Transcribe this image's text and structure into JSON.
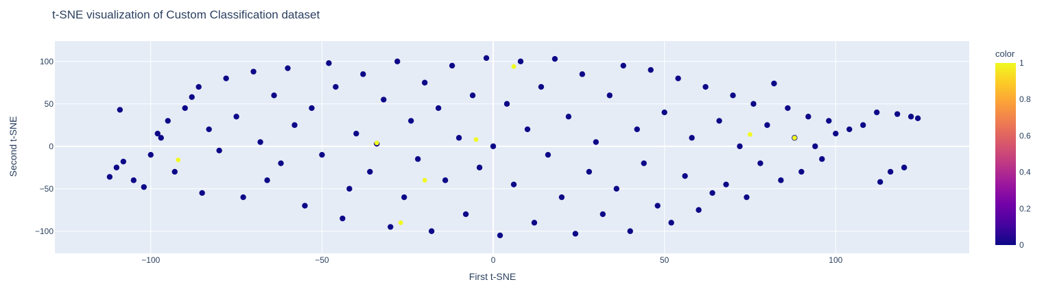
{
  "chart_data": {
    "type": "scatter",
    "title": "t-SNE visualization of Custom Classification dataset",
    "xlabel": "First t-SNE",
    "ylabel": "Second t-SNE",
    "xlim": [
      -128,
      139
    ],
    "ylim": [
      -126,
      124
    ],
    "x_ticks": [
      -100,
      -50,
      0,
      50,
      100
    ],
    "x_tick_labels": [
      "−100",
      "−50",
      "0",
      "50",
      "100"
    ],
    "y_ticks": [
      100,
      50,
      0,
      -50,
      -100
    ],
    "y_tick_labels": [
      "100",
      "50",
      "0",
      "−50",
      "−100"
    ],
    "grid": true,
    "plot_background": "#e5ecf6",
    "colorbar": {
      "title": "color",
      "range": [
        0,
        1
      ],
      "ticks": [
        1,
        0.8,
        0.6,
        0.4,
        0.2,
        0
      ],
      "tick_labels": [
        "1",
        "0.8",
        "0.6",
        "0.4",
        "0.2",
        "0"
      ],
      "colorscale": [
        "#0d0887",
        "#46039f",
        "#7201a8",
        "#9c179e",
        "#bd3786",
        "#d8576b",
        "#ed7953",
        "#fb9f3a",
        "#fdca26",
        "#f0f921"
      ]
    },
    "series": [
      {
        "marker_color": "#0d0887",
        "color_value": 0,
        "points": [
          [
            -112,
            -36
          ],
          [
            -110,
            -25
          ],
          [
            -108,
            -18
          ],
          [
            -105,
            -40
          ],
          [
            -102,
            -48
          ],
          [
            -100,
            -10
          ],
          [
            -98,
            15
          ],
          [
            -97,
            10
          ],
          [
            -95,
            30
          ],
          [
            -93,
            -30
          ],
          [
            -90,
            45
          ],
          [
            -88,
            58
          ],
          [
            -86,
            70
          ],
          [
            -85,
            -55
          ],
          [
            -83,
            20
          ],
          [
            -80,
            -5
          ],
          [
            -78,
            80
          ],
          [
            -75,
            35
          ],
          [
            -73,
            -60
          ],
          [
            -70,
            88
          ],
          [
            -68,
            5
          ],
          [
            -66,
            -40
          ],
          [
            -64,
            60
          ],
          [
            -62,
            -20
          ],
          [
            -60,
            92
          ],
          [
            -58,
            25
          ],
          [
            -55,
            -70
          ],
          [
            -53,
            45
          ],
          [
            -50,
            -10
          ],
          [
            -48,
            98
          ],
          [
            -46,
            70
          ],
          [
            -44,
            -85
          ],
          [
            -42,
            -50
          ],
          [
            -40,
            15
          ],
          [
            -38,
            85
          ],
          [
            -36,
            -30
          ],
          [
            -34,
            3
          ],
          [
            -32,
            55
          ],
          [
            -30,
            -95
          ],
          [
            -28,
            100
          ],
          [
            -26,
            -60
          ],
          [
            -24,
            30
          ],
          [
            -22,
            -15
          ],
          [
            -20,
            75
          ],
          [
            -18,
            -100
          ],
          [
            -16,
            45
          ],
          [
            -14,
            -40
          ],
          [
            -12,
            95
          ],
          [
            -10,
            10
          ],
          [
            -8,
            -80
          ],
          [
            -6,
            60
          ],
          [
            -4,
            -25
          ],
          [
            -2,
            104
          ],
          [
            0,
            0
          ],
          [
            2,
            -105
          ],
          [
            4,
            50
          ],
          [
            6,
            -45
          ],
          [
            8,
            100
          ],
          [
            10,
            20
          ],
          [
            12,
            -90
          ],
          [
            14,
            70
          ],
          [
            16,
            -10
          ],
          [
            18,
            103
          ],
          [
            20,
            -60
          ],
          [
            22,
            35
          ],
          [
            24,
            -103
          ],
          [
            26,
            85
          ],
          [
            28,
            -30
          ],
          [
            30,
            5
          ],
          [
            32,
            -80
          ],
          [
            34,
            60
          ],
          [
            36,
            -50
          ],
          [
            38,
            95
          ],
          [
            40,
            -100
          ],
          [
            42,
            20
          ],
          [
            44,
            -20
          ],
          [
            46,
            90
          ],
          [
            48,
            -70
          ],
          [
            50,
            40
          ],
          [
            52,
            -90
          ],
          [
            54,
            80
          ],
          [
            56,
            -35
          ],
          [
            58,
            10
          ],
          [
            60,
            -75
          ],
          [
            62,
            70
          ],
          [
            64,
            -55
          ],
          [
            66,
            30
          ],
          [
            68,
            -45
          ],
          [
            70,
            60
          ],
          [
            72,
            0
          ],
          [
            74,
            -60
          ],
          [
            76,
            50
          ],
          [
            78,
            -20
          ],
          [
            80,
            25
          ],
          [
            82,
            74
          ],
          [
            84,
            -40
          ],
          [
            86,
            45
          ],
          [
            88,
            10
          ],
          [
            90,
            -30
          ],
          [
            92,
            35
          ],
          [
            94,
            0
          ],
          [
            96,
            -15
          ],
          [
            98,
            30
          ],
          [
            100,
            15
          ],
          [
            104,
            20
          ],
          [
            108,
            25
          ],
          [
            112,
            40
          ],
          [
            113,
            -42
          ],
          [
            116,
            -30
          ],
          [
            118,
            38
          ],
          [
            120,
            -25
          ],
          [
            122,
            35
          ],
          [
            124,
            33
          ],
          [
            -109,
            43
          ]
        ]
      },
      {
        "marker_color": "#f0f921",
        "color_value": 1,
        "points": [
          [
            -34,
            4
          ],
          [
            -92,
            -16
          ],
          [
            88,
            10
          ],
          [
            75,
            14
          ],
          [
            -5,
            8
          ],
          [
            6,
            94
          ],
          [
            -20,
            -40
          ],
          [
            -27,
            -90
          ]
        ]
      }
    ]
  }
}
